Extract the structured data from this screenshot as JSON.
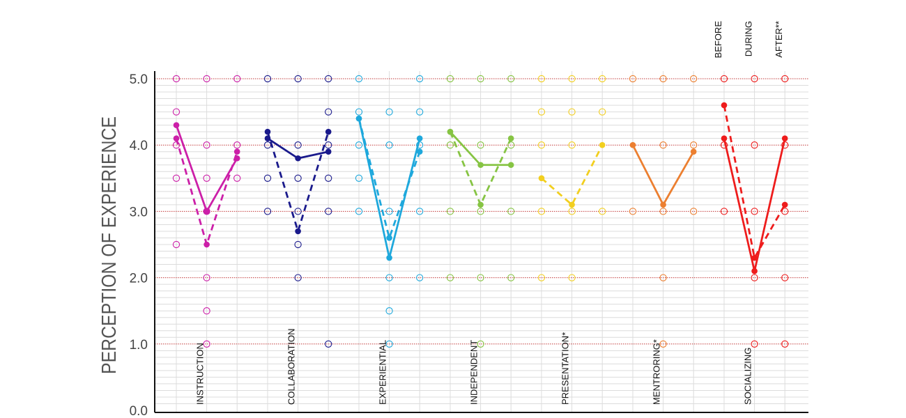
{
  "chart_data": {
    "type": "line",
    "title": "",
    "ylabel": "PERCEPTION OF EXPERIENCE",
    "ylim": [
      0,
      5
    ],
    "yticks": [
      "0.0",
      "1.0",
      "2.0",
      "3.0",
      "4.0",
      "5.0"
    ],
    "time_labels": [
      "BEFORE",
      "DURING",
      "AFTER**"
    ],
    "categories": [
      {
        "name": "INSTRUCTION",
        "color": "#cc1fa8",
        "solid": [
          4.3,
          3.0,
          3.8
        ],
        "dashed": [
          4.1,
          2.5,
          3.9
        ],
        "responses": [
          [
            5.0,
            4.5,
            4.0,
            3.5,
            2.5
          ],
          [
            5.0,
            4.0,
            3.5,
            3.0,
            2.0,
            1.5,
            1.0
          ],
          [
            5.0,
            4.0,
            3.5
          ]
        ]
      },
      {
        "name": "COLLABORATION",
        "color": "#1a1a8c",
        "solid": [
          4.1,
          3.8,
          3.9
        ],
        "dashed": [
          4.2,
          2.7,
          4.2
        ],
        "responses": [
          [
            5.0,
            4.0,
            3.5,
            3.0
          ],
          [
            5.0,
            4.0,
            3.5,
            3.0,
            2.5,
            2.0
          ],
          [
            5.0,
            4.5,
            4.0,
            3.5,
            3.0,
            1.0
          ]
        ]
      },
      {
        "name": "EXPERIENTIAL",
        "color": "#1ea8dc",
        "solid": [
          4.4,
          2.3,
          4.1
        ],
        "dashed": [
          4.4,
          2.6,
          3.9
        ],
        "responses": [
          [
            5.0,
            4.5,
            4.0,
            3.5,
            3.0
          ],
          [
            4.5,
            4.0,
            3.0,
            2.0,
            1.5,
            1.0
          ],
          [
            5.0,
            4.5,
            4.0,
            3.0,
            2.0
          ]
        ]
      },
      {
        "name": "INDEPENDENT",
        "color": "#86c443",
        "solid": [
          4.2,
          3.7,
          3.7
        ],
        "dashed": [
          4.2,
          3.1,
          4.1
        ],
        "responses": [
          [
            5.0,
            4.0,
            3.0,
            2.0
          ],
          [
            5.0,
            4.0,
            3.0,
            2.0,
            1.0
          ],
          [
            5.0,
            4.0,
            3.0,
            2.0
          ]
        ]
      },
      {
        "name": "PRESENTATION*",
        "color": "#f2cf1f",
        "solid": [],
        "dashed": [
          3.5,
          3.1,
          4.0
        ],
        "responses": [
          [
            5.0,
            4.5,
            4.0,
            3.0,
            2.0
          ],
          [
            5.0,
            4.5,
            4.0,
            3.0,
            2.0
          ],
          [
            5.0,
            4.5,
            3.0
          ]
        ]
      },
      {
        "name": "MENTRORING*",
        "color": "#ec7f30",
        "solid": [
          4.0,
          3.1,
          3.9
        ],
        "dashed": [],
        "responses": [
          [
            5.0,
            3.0
          ],
          [
            5.0,
            4.0,
            3.0,
            2.0,
            1.0
          ],
          [
            5.0,
            4.0,
            3.0
          ]
        ]
      },
      {
        "name": "SOCIALIZING",
        "color": "#ee1c1c",
        "solid": [
          4.1,
          2.1,
          4.1
        ],
        "dashed": [
          4.6,
          2.3,
          3.1
        ],
        "responses": [
          [
            5.0,
            4.0,
            3.0
          ],
          [
            5.0,
            4.0,
            3.0,
            2.0,
            1.0
          ],
          [
            5.0,
            4.0,
            3.0,
            2.0,
            1.0
          ]
        ]
      }
    ]
  }
}
